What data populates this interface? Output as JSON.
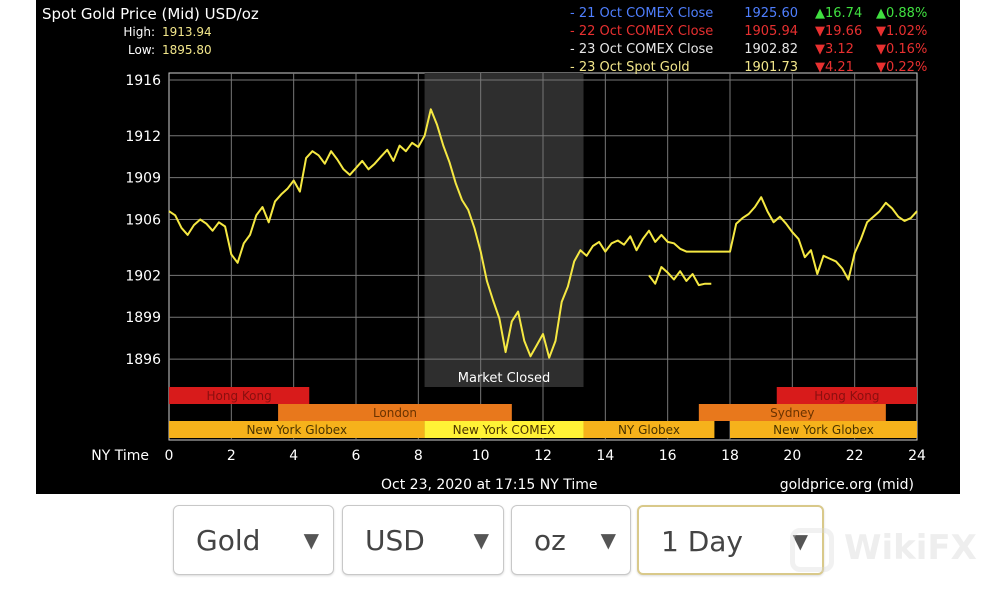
{
  "chart_data": {
    "type": "line",
    "title": "Spot Gold Price (Mid) USD/oz",
    "high_label": "High:",
    "high_value": "1913.94",
    "low_label": "Low:",
    "low_value": "1895.80",
    "xlabel": "NY Time",
    "x_ticks": [
      0,
      2,
      4,
      6,
      8,
      10,
      12,
      14,
      16,
      18,
      20,
      22,
      24
    ],
    "y_ticks": [
      1916,
      1912,
      1909,
      1906,
      1902,
      1899,
      1896
    ],
    "xlim": [
      0,
      24
    ],
    "ylim": [
      1894,
      1916.5
    ],
    "grid": true,
    "shaded_region": {
      "x_from": 8.2,
      "x_to": 13.3,
      "label": "Market Closed"
    },
    "legend": [
      {
        "label": "- 21 Oct COMEX Close",
        "value": "1925.60",
        "change": "▲16.74",
        "pct": "▲0.88%",
        "color": "#4f7fff",
        "dir": "up"
      },
      {
        "label": "- 22 Oct COMEX Close",
        "value": "1905.94",
        "change": "▼19.66",
        "pct": "▼1.02%",
        "color": "#e83030",
        "dir": "down"
      },
      {
        "label": "- 23 Oct COMEX Close",
        "value": "1902.82",
        "change": "▼3.12",
        "pct": "▼0.16%",
        "color": "#e6e6e6",
        "dir": "down"
      },
      {
        "label": "- 23 Oct Spot Gold",
        "value": "1901.73",
        "change": "▼4.21",
        "pct": "▼0.22%",
        "color": "#f2e68a",
        "dir": "down"
      }
    ],
    "sessions": [
      {
        "name": "Hong Kong",
        "row": 0,
        "from": 0,
        "to": 4.5,
        "color": "#d81b1b",
        "text_color": "#8a0f0f"
      },
      {
        "name": "Hong Kong",
        "row": 0,
        "from": 19.5,
        "to": 24,
        "color": "#d81b1b",
        "text_color": "#8a0f0f"
      },
      {
        "name": "London",
        "row": 1,
        "from": 3.5,
        "to": 11,
        "color": "#e8781c",
        "text_color": "#6b3300"
      },
      {
        "name": "Sydney",
        "row": 1,
        "from": 17,
        "to": 23,
        "color": "#e8781c",
        "text_color": "#6b3300"
      },
      {
        "name": "New York Globex",
        "row": 2,
        "from": 0,
        "to": 8.2,
        "color": "#f6b21b",
        "text_color": "#4a3400"
      },
      {
        "name": "New York COMEX",
        "row": 2,
        "from": 8.2,
        "to": 13.3,
        "color": "#fff236",
        "text_color": "#4a3400"
      },
      {
        "name": "NY Globex",
        "row": 2,
        "from": 13.3,
        "to": 17.5,
        "color": "#f6b21b",
        "text_color": "#4a3400"
      },
      {
        "name": "New York Globex",
        "row": 2,
        "from": 18,
        "to": 24,
        "color": "#f6b21b",
        "text_color": "#4a3400"
      }
    ],
    "series": [
      {
        "x": [
          0,
          0.2,
          0.4,
          0.6,
          0.8,
          1,
          1.2,
          1.4,
          1.6,
          1.8,
          2,
          2.2,
          2.4,
          2.6,
          2.8,
          3,
          3.2,
          3.4,
          3.6,
          3.8,
          4,
          4.2,
          4.4,
          4.6,
          4.8,
          5,
          5.2,
          5.4,
          5.6,
          5.8,
          6,
          6.2,
          6.4,
          6.6,
          6.8,
          7,
          7.2,
          7.4,
          7.6,
          7.8,
          8,
          8.2,
          8.4,
          8.6,
          8.8,
          9,
          9.2,
          9.4,
          9.6,
          9.8,
          10,
          10.2,
          10.4,
          10.6,
          10.8,
          11,
          11.2,
          11.4,
          11.6,
          11.8,
          12,
          12.2,
          12.4,
          12.6,
          12.8,
          13,
          13.2,
          13.4,
          13.6,
          13.8,
          14,
          14.2,
          14.4,
          14.6,
          14.8,
          15,
          15.2,
          15.4,
          15.6,
          15.8,
          16,
          16.2,
          16.4,
          16.6,
          16.8,
          17,
          17.2,
          17.4,
          17.6,
          17.8,
          18,
          18.2,
          18.4,
          18.6,
          18.8,
          19,
          19.2,
          19.4,
          19.6,
          19.8,
          20,
          20.2,
          20.4,
          20.6,
          20.8,
          21,
          21.2,
          21.4,
          21.6,
          21.8,
          22,
          22.2,
          22.4,
          22.6,
          22.8,
          23,
          23.2,
          23.4,
          23.6,
          23.8,
          24
        ],
        "values": [
          1906.6,
          1906.3,
          1905.4,
          1904.9,
          1905.6,
          1906.0,
          1905.7,
          1905.2,
          1905.8,
          1905.5,
          1903.5,
          1902.9,
          1904.3,
          1904.9,
          1906.3,
          1906.9,
          1905.8,
          1907.3,
          1907.8,
          1908.2,
          1908.8,
          1908.0,
          1910.4,
          1910.9,
          1910.6,
          1910.0,
          1910.9,
          1910.3,
          1909.6,
          1909.2,
          1909.7,
          1910.2,
          1909.6,
          1910.0,
          1910.5,
          1911.0,
          1910.2,
          1911.3,
          1910.9,
          1911.5,
          1911.2,
          1912.0,
          1913.9,
          1912.8,
          1911.3,
          1910.1,
          1908.6,
          1907.4,
          1906.7,
          1905.4,
          1903.7,
          1901.6,
          1900.2,
          1898.9,
          1896.5,
          1898.7,
          1899.4,
          1897.3,
          1896.2,
          1897.0,
          1897.8,
          1896.1,
          1897.3,
          1900.1,
          1901.2,
          1903.0,
          1903.8,
          1903.4,
          1904.1,
          1904.4,
          1903.7,
          1904.3,
          1904.5,
          1904.2,
          1904.8,
          1903.8,
          1904.6,
          1905.2,
          1904.4,
          1904.9,
          1904.4,
          1904.3,
          1903.9,
          1903.7,
          1903.7,
          1903.7,
          1903.7,
          1903.7,
          1903.7,
          1903.7,
          1903.7,
          1905.7,
          1906.1,
          1906.4,
          1906.9,
          1907.6,
          1906.6,
          1905.8,
          1906.2,
          1905.7,
          1905.1,
          1904.6,
          1903.3,
          1903.8,
          1902.1,
          1903.4,
          1903.2,
          1903.0,
          1902.5,
          1901.7,
          1903.6,
          1904.6,
          1905.8,
          1906.2,
          1906.6,
          1907.2,
          1906.8,
          1906.2,
          1905.9,
          1906.1,
          1906.6
        ]
      },
      {
        "x": [
          15.4,
          15.6,
          15.8,
          16,
          16.2,
          16.4,
          16.6,
          16.8,
          17,
          17.2,
          17.4
        ],
        "values": [
          1902.0,
          1901.4,
          1902.6,
          1902.2,
          1901.7,
          1902.3,
          1901.6,
          1902.1,
          1901.3,
          1901.4,
          1901.4
        ]
      }
    ],
    "footer_timestamp": "Oct 23, 2020 at 17:15 NY Time",
    "footer_source": "goldprice.org (mid)",
    "line_color": "#f5e842"
  },
  "controls": {
    "metal": "Gold",
    "currency": "USD",
    "unit": "oz",
    "period": "1 Day"
  },
  "watermark": {
    "text": "WikiFX"
  }
}
